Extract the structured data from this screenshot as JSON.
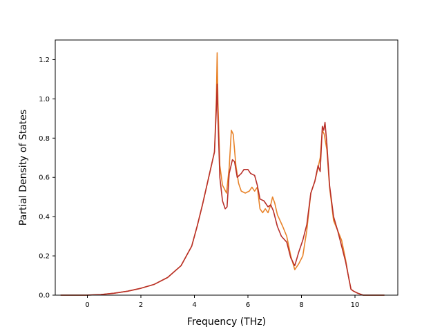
{
  "chart_data": {
    "type": "line",
    "title": "",
    "xlabel": "Frequency (THz)",
    "ylabel": "Partial Density of States",
    "xlim": [
      -1.2,
      11.6
    ],
    "ylim": [
      0.0,
      1.3
    ],
    "x_ticks": [
      0,
      2,
      4,
      6,
      8,
      10
    ],
    "x_tick_labels": [
      "0",
      "2",
      "4",
      "6",
      "8",
      "10"
    ],
    "y_ticks": [
      0.0,
      0.2,
      0.4,
      0.6,
      0.8,
      1.0,
      1.2
    ],
    "y_tick_labels": [
      "0.0",
      "0.2",
      "0.4",
      "0.6",
      "0.8",
      "1.0",
      "1.2"
    ],
    "grid": false,
    "legend": "none",
    "series": [
      {
        "color": "#e8832a",
        "points": [
          [
            -1.0,
            0.0
          ],
          [
            0.0,
            0.0
          ],
          [
            0.5,
            0.003
          ],
          [
            1.0,
            0.01
          ],
          [
            1.5,
            0.02
          ],
          [
            2.0,
            0.035
          ],
          [
            2.5,
            0.055
          ],
          [
            3.0,
            0.09
          ],
          [
            3.5,
            0.15
          ],
          [
            3.9,
            0.25
          ],
          [
            4.1,
            0.35
          ],
          [
            4.3,
            0.46
          ],
          [
            4.5,
            0.58
          ],
          [
            4.65,
            0.67
          ],
          [
            4.75,
            0.73
          ],
          [
            4.82,
            1.0
          ],
          [
            4.85,
            1.235
          ],
          [
            4.88,
            0.98
          ],
          [
            4.95,
            0.66
          ],
          [
            5.05,
            0.56
          ],
          [
            5.2,
            0.52
          ],
          [
            5.3,
            0.65
          ],
          [
            5.38,
            0.84
          ],
          [
            5.45,
            0.82
          ],
          [
            5.55,
            0.66
          ],
          [
            5.65,
            0.57
          ],
          [
            5.75,
            0.53
          ],
          [
            5.9,
            0.52
          ],
          [
            6.05,
            0.53
          ],
          [
            6.15,
            0.55
          ],
          [
            6.25,
            0.53
          ],
          [
            6.35,
            0.55
          ],
          [
            6.45,
            0.44
          ],
          [
            6.55,
            0.42
          ],
          [
            6.65,
            0.44
          ],
          [
            6.75,
            0.42
          ],
          [
            6.85,
            0.46
          ],
          [
            6.92,
            0.5
          ],
          [
            7.0,
            0.47
          ],
          [
            7.1,
            0.41
          ],
          [
            7.3,
            0.35
          ],
          [
            7.45,
            0.3
          ],
          [
            7.6,
            0.2
          ],
          [
            7.75,
            0.13
          ],
          [
            7.9,
            0.16
          ],
          [
            8.05,
            0.2
          ],
          [
            8.2,
            0.33
          ],
          [
            8.35,
            0.52
          ],
          [
            8.5,
            0.58
          ],
          [
            8.62,
            0.65
          ],
          [
            8.7,
            0.7
          ],
          [
            8.78,
            0.84
          ],
          [
            8.85,
            0.82
          ],
          [
            8.95,
            0.74
          ],
          [
            9.05,
            0.55
          ],
          [
            9.2,
            0.38
          ],
          [
            9.35,
            0.33
          ],
          [
            9.5,
            0.28
          ],
          [
            9.65,
            0.18
          ],
          [
            9.75,
            0.1
          ],
          [
            9.85,
            0.03
          ],
          [
            9.95,
            0.02
          ],
          [
            10.1,
            0.01
          ],
          [
            10.3,
            0.0
          ],
          [
            11.1,
            0.0
          ]
        ]
      },
      {
        "color": "#b8302a",
        "points": [
          [
            -1.0,
            0.0
          ],
          [
            0.0,
            0.0
          ],
          [
            0.5,
            0.003
          ],
          [
            1.0,
            0.01
          ],
          [
            1.5,
            0.02
          ],
          [
            2.0,
            0.035
          ],
          [
            2.5,
            0.055
          ],
          [
            3.0,
            0.09
          ],
          [
            3.5,
            0.15
          ],
          [
            3.9,
            0.25
          ],
          [
            4.1,
            0.35
          ],
          [
            4.3,
            0.46
          ],
          [
            4.5,
            0.58
          ],
          [
            4.65,
            0.67
          ],
          [
            4.75,
            0.73
          ],
          [
            4.82,
            0.95
          ],
          [
            4.85,
            1.075
          ],
          [
            4.88,
            0.9
          ],
          [
            4.95,
            0.6
          ],
          [
            5.05,
            0.48
          ],
          [
            5.15,
            0.44
          ],
          [
            5.22,
            0.45
          ],
          [
            5.3,
            0.62
          ],
          [
            5.42,
            0.69
          ],
          [
            5.5,
            0.68
          ],
          [
            5.6,
            0.6
          ],
          [
            5.75,
            0.62
          ],
          [
            5.85,
            0.64
          ],
          [
            6.0,
            0.64
          ],
          [
            6.1,
            0.62
          ],
          [
            6.25,
            0.61
          ],
          [
            6.35,
            0.56
          ],
          [
            6.45,
            0.49
          ],
          [
            6.6,
            0.48
          ],
          [
            6.75,
            0.45
          ],
          [
            6.85,
            0.46
          ],
          [
            6.95,
            0.43
          ],
          [
            7.1,
            0.35
          ],
          [
            7.25,
            0.3
          ],
          [
            7.45,
            0.27
          ],
          [
            7.6,
            0.19
          ],
          [
            7.75,
            0.15
          ],
          [
            7.9,
            0.22
          ],
          [
            8.05,
            0.28
          ],
          [
            8.2,
            0.36
          ],
          [
            8.35,
            0.52
          ],
          [
            8.5,
            0.58
          ],
          [
            8.62,
            0.66
          ],
          [
            8.7,
            0.63
          ],
          [
            8.78,
            0.86
          ],
          [
            8.83,
            0.84
          ],
          [
            8.88,
            0.88
          ],
          [
            8.95,
            0.77
          ],
          [
            9.05,
            0.56
          ],
          [
            9.2,
            0.4
          ],
          [
            9.35,
            0.33
          ],
          [
            9.5,
            0.25
          ],
          [
            9.65,
            0.17
          ],
          [
            9.75,
            0.1
          ],
          [
            9.85,
            0.03
          ],
          [
            9.95,
            0.02
          ],
          [
            10.1,
            0.01
          ],
          [
            10.3,
            0.0
          ],
          [
            11.1,
            0.0
          ]
        ]
      }
    ]
  }
}
